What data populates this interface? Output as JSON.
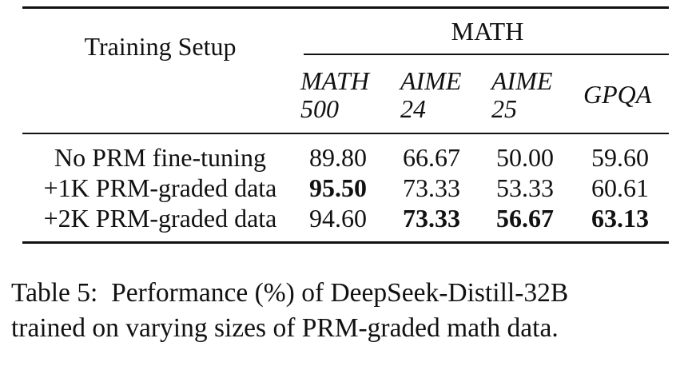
{
  "table": {
    "header": {
      "setup": "Training Setup",
      "group": "MATH",
      "columns": [
        {
          "line1": "MATH",
          "line2": "500"
        },
        {
          "line1": "AIME",
          "line2": "24"
        },
        {
          "line1": "AIME",
          "line2": "25"
        },
        {
          "line1": "GPQA",
          "line2": ""
        }
      ]
    },
    "rows": [
      {
        "setup": "No PRM fine-tuning",
        "values": [
          "89.80",
          "66.67",
          "50.00",
          "59.60"
        ],
        "bold": [
          false,
          false,
          false,
          false
        ]
      },
      {
        "setup": "+1K PRM-graded data",
        "values": [
          "95.50",
          "73.33",
          "53.33",
          "60.61"
        ],
        "bold": [
          true,
          false,
          false,
          false
        ]
      },
      {
        "setup": "+2K PRM-graded data",
        "values": [
          "94.60",
          "73.33",
          "56.67",
          "63.13"
        ],
        "bold": [
          false,
          true,
          true,
          true
        ]
      }
    ]
  },
  "caption": {
    "line1": "Table 5:  Performance (%) of DeepSeek-Distill-32B",
    "line2": "trained on varying sizes of PRM-graded math data."
  }
}
